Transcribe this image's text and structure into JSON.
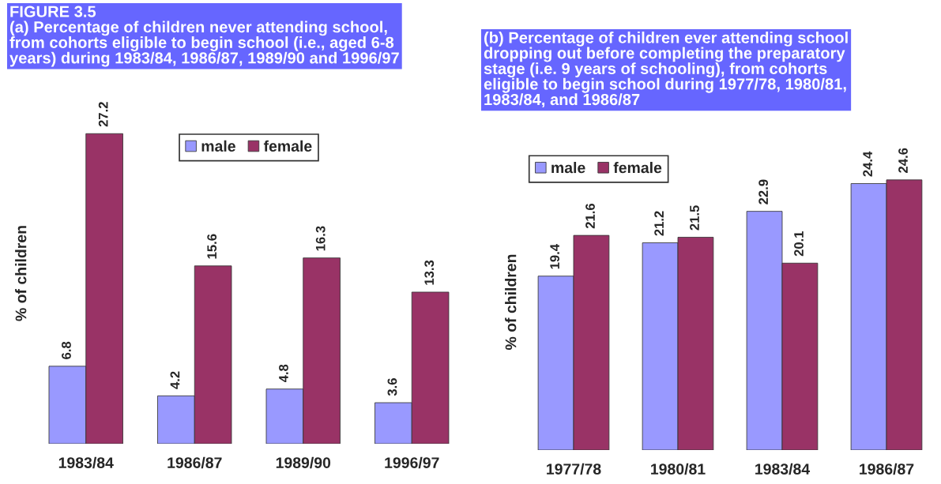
{
  "chart_data": [
    {
      "type": "bar",
      "title": "(a) Percentage of children never attending school,\nfrom cohorts eligible to begin school (i.e., aged 6-8\nyears) during 1983/84, 1986/87, 1989/90 and 1996/97",
      "annotations": [
        "FIGURE 3.5"
      ],
      "ylabel": "% of children",
      "categories": [
        "1983/84",
        "1986/87",
        "1989/90",
        "1996/97"
      ],
      "series": [
        {
          "name": "male",
          "color": "#9999ff",
          "values": [
            6.8,
            4.2,
            4.8,
            3.6
          ]
        },
        {
          "name": "female",
          "color": "#993366",
          "values": [
            27.2,
            15.6,
            16.3,
            13.3
          ]
        }
      ],
      "data_labels": true,
      "legend": "top",
      "tick_labels": "x"
    },
    {
      "type": "bar",
      "title": "(b) Percentage of children ever attending school\ndropping out before completing the preparatory\nstage (i.e. 9 years of schooling), from cohorts\neligible to begin school during 1977/78, 1980/81,\n1983/84, and 1986/87",
      "ylabel": "% of children",
      "categories": [
        "1977/78",
        "1980/81",
        "1983/84",
        "1986/87"
      ],
      "series": [
        {
          "name": "male",
          "color": "#9999ff",
          "values": [
            19.4,
            21.2,
            22.9,
            24.4
          ]
        },
        {
          "name": "female",
          "color": "#993366",
          "values": [
            21.6,
            21.5,
            20.1,
            24.6
          ]
        }
      ],
      "ylim": [
        10,
        26
      ],
      "data_labels": true,
      "legend": "top left",
      "tick_labels": "x"
    }
  ]
}
